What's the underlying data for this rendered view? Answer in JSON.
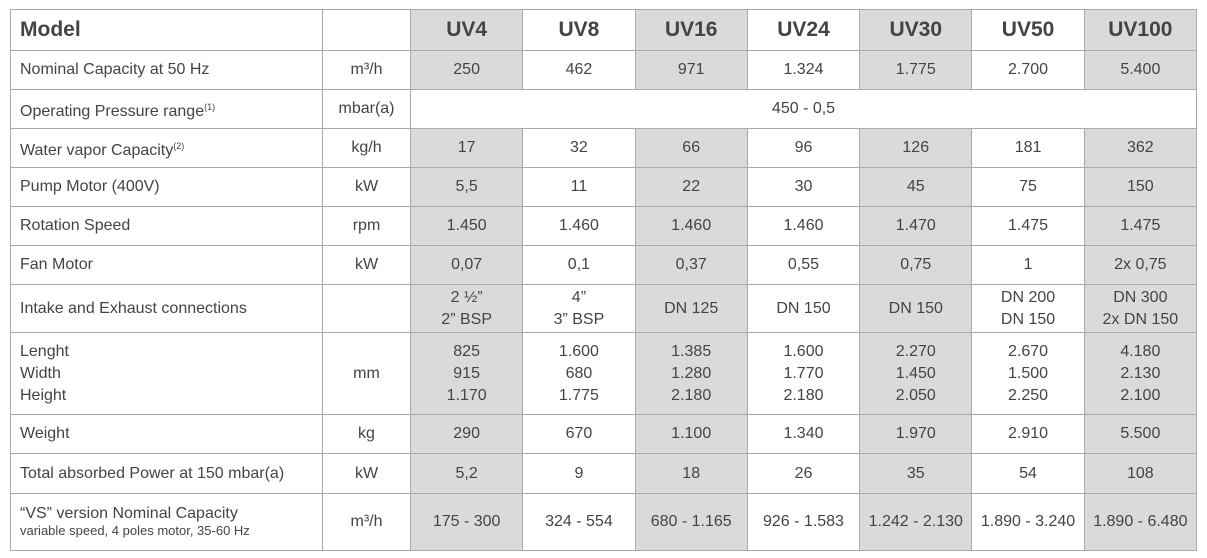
{
  "table": {
    "header": {
      "model": "Model",
      "columns": [
        "UV4",
        "UV8",
        "UV16",
        "UV24",
        "UV30",
        "UV50",
        "UV100"
      ]
    },
    "rows": [
      {
        "label": "Nominal Capacity at 50 Hz",
        "unit": "m³/h",
        "values": [
          "250",
          "462",
          "971",
          "1.324",
          "1.775",
          "2.700",
          "5.400"
        ]
      },
      {
        "label": "Operating Pressure range",
        "note": "(1)",
        "unit": "mbar(a)",
        "span_value": "450 - 0,5"
      },
      {
        "label": "Water vapor Capacity",
        "note": "(2)",
        "unit": "kg/h",
        "values": [
          "17",
          "32",
          "66",
          "96",
          "126",
          "181",
          "362"
        ]
      },
      {
        "label": "Pump Motor (400V)",
        "unit": "kW",
        "values": [
          "5,5",
          "11",
          "22",
          "30",
          "45",
          "75",
          "150"
        ]
      },
      {
        "label": "Rotation Speed",
        "unit": "rpm",
        "values": [
          "1.450",
          "1.460",
          "1.460",
          "1.460",
          "1.470",
          "1.475",
          "1.475"
        ]
      },
      {
        "label": "Fan Motor",
        "unit": "kW",
        "values": [
          "0,07",
          "0,1",
          "0,37",
          "0,55",
          "0,75",
          "1",
          "2x 0,75"
        ]
      },
      {
        "label": "Intake and Exhaust connections",
        "values": [
          [
            "2 ½”",
            "2” BSP"
          ],
          [
            "4”",
            "3” BSP"
          ],
          "DN 125",
          "DN 150",
          "DN 150",
          [
            "DN 200",
            "DN 150"
          ],
          [
            "DN 300",
            "2x DN 150"
          ]
        ]
      },
      {
        "label": [
          "Lenght",
          "Width",
          "Height"
        ],
        "unit": "mm",
        "values": [
          [
            "825",
            "915",
            "1.170"
          ],
          [
            "1.600",
            "680",
            "1.775"
          ],
          [
            "1.385",
            "1.280",
            "2.180"
          ],
          [
            "1.600",
            "1.770",
            "2.180"
          ],
          [
            "2.270",
            "1.450",
            "2.050"
          ],
          [
            "2.670",
            "1.500",
            "2.250"
          ],
          [
            "4.180",
            "2.130",
            "2.100"
          ]
        ]
      },
      {
        "label": "Weight",
        "unit": "kg",
        "values": [
          "290",
          "670",
          "1.100",
          "1.340",
          "1.970",
          "2.910",
          "5.500"
        ]
      },
      {
        "label": "Total absorbed Power at 150 mbar(a)",
        "unit": "kW",
        "values": [
          "5,2",
          "9",
          "18",
          "26",
          "35",
          "54",
          "108"
        ]
      },
      {
        "label": "“VS” version Nominal Capacity",
        "sublabel": "variable speed, 4 poles motor, 35-60 Hz",
        "unit": "m³/h",
        "values": [
          "175 - 300",
          "324 - 554",
          "680 - 1.165",
          "926 - 1.583",
          "1.242 - 2.130",
          "1.890 - 3.240",
          "1.890 - 6.480"
        ]
      }
    ]
  }
}
